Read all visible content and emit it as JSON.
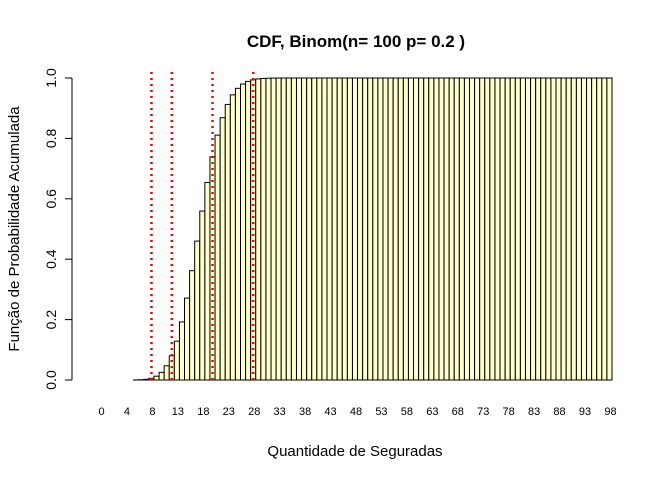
{
  "chart_data": {
    "type": "bar",
    "title": "CDF, Binom(n= 100 p= 0.2 )",
    "xlabel": "Quantidade de Seguradas",
    "ylabel": "Função de Probabilidade Acumulada",
    "ylim": [
      0,
      1
    ],
    "y_ticks": [
      "0.0",
      "0.2",
      "0.4",
      "0.6",
      "0.8",
      "1.0"
    ],
    "x_tick_labels": [
      "0",
      "4",
      "8",
      "13",
      "18",
      "23",
      "28",
      "33",
      "38",
      "43",
      "48",
      "53",
      "58",
      "63",
      "68",
      "73",
      "78",
      "83",
      "88",
      "93",
      "98"
    ],
    "categories": [
      0,
      1,
      2,
      3,
      4,
      5,
      6,
      7,
      8,
      9,
      10,
      11,
      12,
      13,
      14,
      15,
      16,
      17,
      18,
      19,
      20,
      21,
      22,
      23,
      24,
      25,
      26,
      27,
      28,
      29,
      30,
      31,
      32,
      33,
      34,
      35,
      36,
      37,
      38,
      39,
      40,
      41,
      42,
      43,
      44,
      45,
      46,
      47,
      48,
      49,
      50,
      51,
      52,
      53,
      54,
      55,
      56,
      57,
      58,
      59,
      60,
      61,
      62,
      63,
      64,
      65,
      66,
      67,
      68,
      69,
      70,
      71,
      72,
      73,
      74,
      75,
      76,
      77,
      78,
      79,
      80,
      81,
      82,
      83,
      84,
      85,
      86,
      87,
      88,
      89,
      90,
      91,
      92,
      93,
      94,
      95,
      96,
      97,
      98,
      99,
      100
    ],
    "values": [
      0,
      0,
      0,
      0,
      0,
      0,
      0,
      0.0003,
      0.0009,
      0.0023,
      0.0057,
      0.0126,
      0.0253,
      0.047,
      0.0804,
      0.1285,
      0.1923,
      0.2712,
      0.3621,
      0.46,
      0.5595,
      0.654,
      0.7389,
      0.8109,
      0.8686,
      0.9125,
      0.9442,
      0.9658,
      0.98,
      0.9888,
      0.9939,
      0.9969,
      0.9984,
      0.9993,
      0.9997,
      0.9999,
      1,
      1,
      1,
      1,
      1,
      1,
      1,
      1,
      1,
      1,
      1,
      1,
      1,
      1,
      1,
      1,
      1,
      1,
      1,
      1,
      1,
      1,
      1,
      1,
      1,
      1,
      1,
      1,
      1,
      1,
      1,
      1,
      1,
      1,
      1,
      1,
      1,
      1,
      1,
      1,
      1,
      1,
      1,
      1,
      1,
      1,
      1,
      1,
      1,
      1,
      1,
      1,
      1,
      1,
      1,
      1,
      1,
      1,
      1,
      1,
      1,
      1,
      1,
      1,
      1
    ],
    "bar_color": "#ffffcc",
    "vlines": {
      "x": [
        10,
        14,
        22,
        30
      ],
      "color": "#ff0000",
      "style": "dotted"
    },
    "grid": false
  }
}
